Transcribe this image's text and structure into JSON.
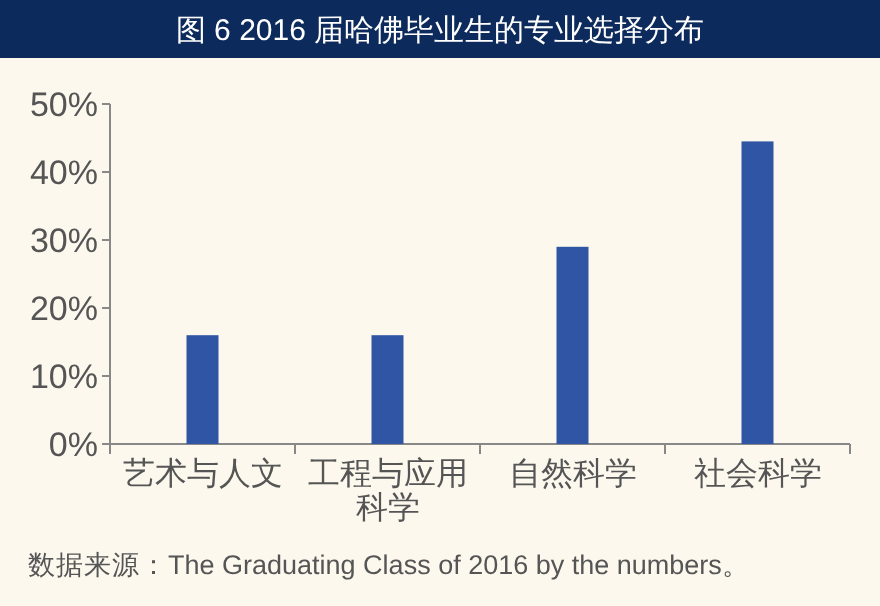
{
  "chart_data": {
    "type": "bar",
    "title": "图 6 2016 届哈佛毕业生的专业选择分布",
    "categories": [
      "艺术与人文",
      "工程与应用科学",
      "自然科学",
      "社会科学"
    ],
    "values": [
      16,
      16,
      29,
      44.5
    ],
    "color": "#2f55a4",
    "ylim": [
      0,
      50
    ],
    "yticks": [
      {
        "value": 0,
        "label": "0%"
      },
      {
        "value": 10,
        "label": "10%"
      },
      {
        "value": 20,
        "label": "20%"
      },
      {
        "value": 30,
        "label": "30%"
      },
      {
        "value": 40,
        "label": "40%"
      },
      {
        "value": 50,
        "label": "50%"
      }
    ],
    "grid": false,
    "annotations": [
      "数据来源：The Graduating Class of 2016 by the numbers。"
    ]
  }
}
